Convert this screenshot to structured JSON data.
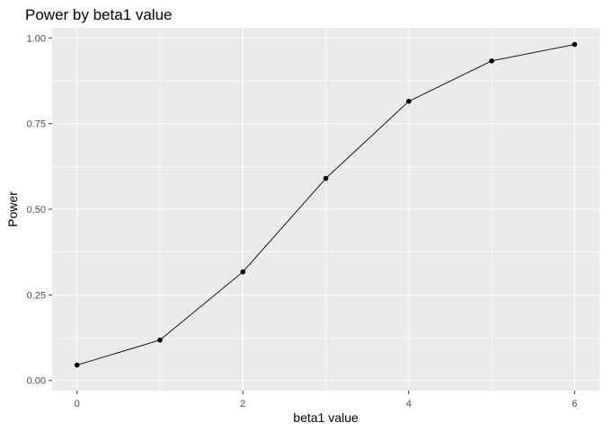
{
  "chart_data": {
    "type": "line",
    "title": "Power by beta1 value",
    "xlabel": "beta1 value",
    "ylabel": "Power",
    "xlim": [
      -0.3,
      6.3
    ],
    "ylim": [
      0,
      1.0
    ],
    "x_ticks": [
      0,
      2,
      4,
      6
    ],
    "x_tick_labels": [
      "0",
      "2",
      "4",
      "6"
    ],
    "x_minor_ticks": [
      1,
      3,
      5
    ],
    "y_ticks": [
      0,
      0.25,
      0.5,
      0.75,
      1.0
    ],
    "y_tick_labels": [
      "0.00",
      "0.25",
      "0.50",
      "0.75",
      "1.00"
    ],
    "y_minor_ticks": [
      0.125,
      0.375,
      0.625,
      0.875
    ],
    "grid": true,
    "legend": "none",
    "x": [
      0,
      1,
      2,
      3,
      4,
      5,
      6
    ],
    "series": [
      {
        "values": [
          0.045,
          0.118,
          0.317,
          0.59,
          0.815,
          0.933,
          0.981
        ],
        "color": "#000000"
      }
    ],
    "panel_background": "#ebebeb"
  }
}
